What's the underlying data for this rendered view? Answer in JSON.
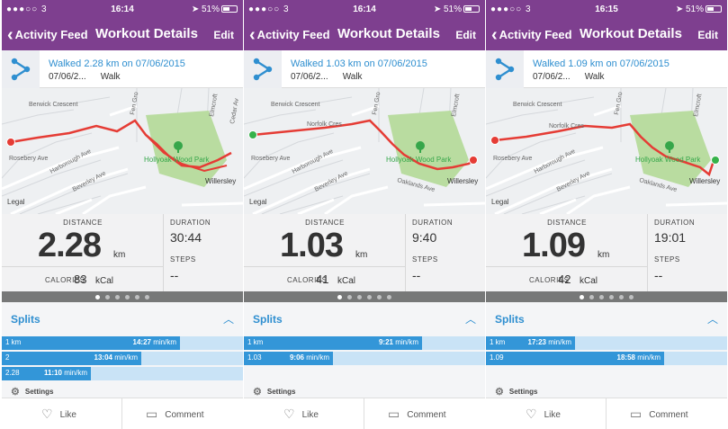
{
  "colors": {
    "header": "#7e3f8f",
    "accent": "#2f8fd0",
    "split_fill": "#3396d8",
    "split_bg": "#c9e3f6",
    "route": "#e53c35",
    "start_green": "#36b24a"
  },
  "screens": [
    {
      "status": {
        "signal": "●●●○○ 3",
        "wifi": "wifi-icon",
        "time": "16:14",
        "battery": "51%"
      },
      "nav": {
        "back_label": "Activity Feed",
        "title": "Workout Details",
        "edit_label": "Edit"
      },
      "activity": {
        "headline": "Walked 2.28 km on 07/06/2015",
        "date_short": "07/06/2...",
        "type": "Walk"
      },
      "map": {
        "streets": [
          "Berwick Crescent",
          "Rosebery Ave",
          "Harborough Ave",
          "Beverley Ave",
          "Hollyoak Wood Park",
          "Willersley",
          "Fen Gro",
          "Elmcroft",
          "Cedar Av"
        ],
        "legal": "Legal"
      },
      "stats": {
        "distance_label": "DISTANCE",
        "distance_value": "2.28",
        "distance_unit": "km",
        "calories_label": "CALORIES",
        "calories_value": "83",
        "calories_unit": "kCal",
        "duration_label": "DURATION",
        "duration_value": "30:44",
        "steps_label": "STEPS",
        "steps_value": "--"
      },
      "pager": {
        "count": 6,
        "active": 0
      },
      "splits": {
        "title": "Splits",
        "rows": [
          {
            "label": "1 km",
            "pace": "14:27",
            "unit": "min/km",
            "fill": 0.74
          },
          {
            "label": "2",
            "pace": "13:04",
            "unit": "min/km",
            "fill": 0.58
          },
          {
            "label": "2.28",
            "pace": "11:10",
            "unit": "min/km",
            "fill": 0.37
          }
        ],
        "settings_label": "Settings"
      },
      "actions": {
        "like_label": "Like",
        "comment_label": "Comment"
      }
    },
    {
      "status": {
        "signal": "●●●○○ 3",
        "wifi": "wifi-icon",
        "time": "16:14",
        "battery": "51%"
      },
      "nav": {
        "back_label": "Activity Feed",
        "title": "Workout Details",
        "edit_label": "Edit"
      },
      "activity": {
        "headline": "Walked 1.03 km on 07/06/2015",
        "date_short": "07/06/2...",
        "type": "Walk"
      },
      "map": {
        "streets": [
          "Berwick Crescent",
          "Rosebery Ave",
          "Harborough Ave",
          "Beverley Ave",
          "Hollyoak Wood Park",
          "Willersley",
          "Fen Gro",
          "Elmcroft",
          "Norfolk Cres",
          "Oaklands Ave"
        ],
        "legal": "Legal"
      },
      "stats": {
        "distance_label": "DISTANCE",
        "distance_value": "1.03",
        "distance_unit": "km",
        "calories_label": "CALORIES",
        "calories_value": "41",
        "calories_unit": "kCal",
        "duration_label": "DURATION",
        "duration_value": "9:40",
        "steps_label": "STEPS",
        "steps_value": "--"
      },
      "pager": {
        "count": 6,
        "active": 0
      },
      "splits": {
        "title": "Splits",
        "rows": [
          {
            "label": "1 km",
            "pace": "9:21",
            "unit": "min/km",
            "fill": 0.74
          },
          {
            "label": "1.03",
            "pace": "9:06",
            "unit": "min/km",
            "fill": 0.37
          }
        ],
        "settings_label": "Settings"
      },
      "actions": {
        "like_label": "Like",
        "comment_label": "Comment"
      }
    },
    {
      "status": {
        "signal": "●●●○○ 3",
        "wifi": "wifi-icon",
        "time": "16:15",
        "battery": "51%"
      },
      "nav": {
        "back_label": "Activity Feed",
        "title": "Workout Details",
        "edit_label": "Edit"
      },
      "activity": {
        "headline": "Walked 1.09 km on 07/06/2015",
        "date_short": "07/06/2...",
        "type": "Walk"
      },
      "map": {
        "streets": [
          "Berwick Crescent",
          "Rosebery Ave",
          "Harborough Ave",
          "Beverley Ave",
          "Hollyoak Wood Park",
          "Willersley",
          "Fen Gro",
          "Elmcroft",
          "Norfolk Cres",
          "Oaklands Ave"
        ],
        "legal": "Legal"
      },
      "stats": {
        "distance_label": "DISTANCE",
        "distance_value": "1.09",
        "distance_unit": "km",
        "calories_label": "CALORIES",
        "calories_value": "42",
        "calories_unit": "kCal",
        "duration_label": "DURATION",
        "duration_value": "19:01",
        "steps_label": "STEPS",
        "steps_value": "--"
      },
      "pager": {
        "count": 6,
        "active": 0
      },
      "splits": {
        "title": "Splits",
        "rows": [
          {
            "label": "1 km",
            "pace": "17:23",
            "unit": "min/km",
            "fill": 0.37
          },
          {
            "label": "1.09",
            "pace": "18:58",
            "unit": "min/km",
            "fill": 0.74
          }
        ],
        "settings_label": "Settings"
      },
      "actions": {
        "like_label": "Like",
        "comment_label": "Comment"
      }
    }
  ]
}
